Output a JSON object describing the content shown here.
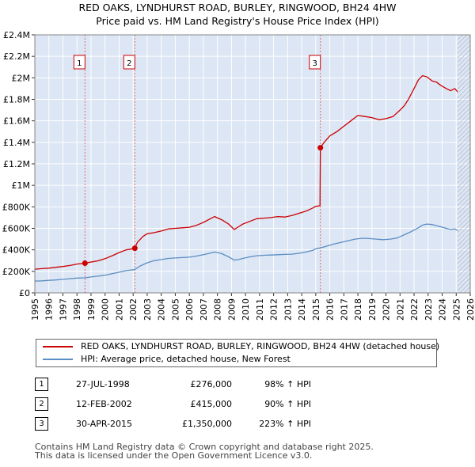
{
  "chart_data": {
    "type": "line",
    "title": "RED OAKS, LYNDHURST ROAD, BURLEY, RINGWOOD, BH24 4HW",
    "subtitle": "Price paid vs. HM Land Registry's House Price Index (HPI)",
    "xlabel": "",
    "ylabel": "",
    "xlim": [
      1995,
      2026
    ],
    "ylim": [
      0,
      2400000
    ],
    "grid": true,
    "x_ticks": [
      "1995",
      "1996",
      "1997",
      "1998",
      "1999",
      "2000",
      "2001",
      "2002",
      "2003",
      "2004",
      "2005",
      "2006",
      "2007",
      "2008",
      "2009",
      "2010",
      "2011",
      "2012",
      "2013",
      "2014",
      "2015",
      "2016",
      "2017",
      "2018",
      "2019",
      "2020",
      "2021",
      "2022",
      "2023",
      "2024",
      "2025",
      "2026"
    ],
    "y_ticks": [
      {
        "value": 0,
        "label": "£0"
      },
      {
        "value": 200000,
        "label": "£200K"
      },
      {
        "value": 400000,
        "label": "£400K"
      },
      {
        "value": 600000,
        "label": "£600K"
      },
      {
        "value": 800000,
        "label": "£800K"
      },
      {
        "value": 1000000,
        "label": "£1M"
      },
      {
        "value": 1200000,
        "label": "£1.2M"
      },
      {
        "value": 1400000,
        "label": "£1.4M"
      },
      {
        "value": 1600000,
        "label": "£1.6M"
      },
      {
        "value": 1800000,
        "label": "£1.8M"
      },
      {
        "value": 2000000,
        "label": "£2M"
      },
      {
        "value": 2200000,
        "label": "£2.2M"
      },
      {
        "value": 2400000,
        "label": "£2.4M"
      }
    ],
    "data_end_year": 2025.1,
    "series": [
      {
        "name": "RED OAKS, LYNDHURST ROAD, BURLEY, RINGWOOD, BH24 4HW (detached house)",
        "color": "#cc0000",
        "x": [
          1995.0,
          1995.5,
          1996.0,
          1996.5,
          1997.0,
          1997.5,
          1998.0,
          1998.57,
          1998.8,
          1999.5,
          2000.0,
          2000.5,
          2001.0,
          2001.5,
          2002.0,
          2002.12,
          2002.3,
          2002.7,
          2003.0,
          2003.5,
          2004.0,
          2004.5,
          2005.0,
          2005.5,
          2006.0,
          2006.5,
          2007.0,
          2007.5,
          2007.8,
          2008.3,
          2008.8,
          2009.2,
          2009.5,
          2009.8,
          2010.3,
          2010.8,
          2011.3,
          2011.8,
          2012.3,
          2012.8,
          2013.3,
          2013.8,
          2014.3,
          2014.8,
          2015.0,
          2015.3,
          2015.33,
          2015.6,
          2016.0,
          2016.5,
          2017.0,
          2017.5,
          2018.0,
          2018.5,
          2019.0,
          2019.5,
          2020.0,
          2020.5,
          2021.0,
          2021.3,
          2021.6,
          2022.0,
          2022.3,
          2022.6,
          2022.9,
          2023.3,
          2023.6,
          2023.9,
          2024.3,
          2024.6,
          2024.9,
          2025.1
        ],
        "y": [
          220000,
          225000,
          230000,
          238000,
          245000,
          255000,
          268000,
          276000,
          282000,
          298000,
          318000,
          345000,
          375000,
          400000,
          410000,
          415000,
          470000,
          525000,
          550000,
          560000,
          575000,
          595000,
          600000,
          605000,
          610000,
          628000,
          655000,
          690000,
          710000,
          680000,
          640000,
          590000,
          615000,
          640000,
          665000,
          690000,
          695000,
          700000,
          710000,
          705000,
          720000,
          740000,
          760000,
          790000,
          805000,
          810000,
          1350000,
          1400000,
          1460000,
          1500000,
          1550000,
          1600000,
          1650000,
          1640000,
          1630000,
          1610000,
          1620000,
          1640000,
          1700000,
          1740000,
          1800000,
          1900000,
          1980000,
          2020000,
          2010000,
          1970000,
          1960000,
          1930000,
          1900000,
          1880000,
          1900000,
          1870000
        ]
      },
      {
        "name": "HPI: Average price, detached house, New Forest",
        "color": "#5b8ec4",
        "x": [
          1995.0,
          1995.5,
          1996.0,
          1996.5,
          1997.0,
          1997.5,
          1998.0,
          1998.57,
          1999.0,
          1999.5,
          2000.0,
          2000.5,
          2001.0,
          2001.5,
          2002.0,
          2002.12,
          2002.5,
          2003.0,
          2003.5,
          2004.0,
          2004.5,
          2005.0,
          2005.5,
          2006.0,
          2006.5,
          2007.0,
          2007.5,
          2007.8,
          2008.3,
          2008.8,
          2009.2,
          2009.5,
          2009.8,
          2010.3,
          2010.8,
          2011.3,
          2011.8,
          2012.3,
          2012.8,
          2013.3,
          2013.8,
          2014.3,
          2014.8,
          2015.0,
          2015.33,
          2015.8,
          2016.3,
          2016.8,
          2017.3,
          2017.8,
          2018.3,
          2018.8,
          2019.3,
          2019.8,
          2020.3,
          2020.8,
          2021.3,
          2021.8,
          2022.3,
          2022.6,
          2022.9,
          2023.3,
          2023.6,
          2023.9,
          2024.3,
          2024.6,
          2024.9,
          2025.1
        ],
        "y": [
          110000,
          112000,
          116000,
          120000,
          126000,
          132000,
          138000,
          140000,
          148000,
          155000,
          165000,
          178000,
          192000,
          207000,
          215000,
          218000,
          250000,
          280000,
          300000,
          310000,
          320000,
          325000,
          328000,
          332000,
          342000,
          355000,
          370000,
          380000,
          365000,
          335000,
          305000,
          310000,
          320000,
          335000,
          345000,
          350000,
          352000,
          355000,
          358000,
          360000,
          368000,
          380000,
          395000,
          410000,
          418000,
          435000,
          455000,
          470000,
          485000,
          500000,
          508000,
          505000,
          500000,
          495000,
          500000,
          510000,
          540000,
          570000,
          605000,
          630000,
          640000,
          635000,
          625000,
          615000,
          600000,
          590000,
          595000,
          580000
        ]
      }
    ],
    "sales": [
      {
        "num": "1",
        "date": "27-JUL-1998",
        "x": 1998.57,
        "price": 276000,
        "price_label": "£276,000",
        "hpi": "98% ↑ HPI"
      },
      {
        "num": "2",
        "date": "12-FEB-2002",
        "x": 2002.12,
        "price": 415000,
        "price_label": "£415,000",
        "hpi": "90% ↑ HPI"
      },
      {
        "num": "3",
        "date": "30-APR-2015",
        "x": 2015.33,
        "price": 1350000,
        "price_label": "£1,350,000",
        "hpi": "223% ↑ HPI"
      }
    ]
  },
  "legend": {
    "red_label": "RED OAKS, LYNDHURST ROAD, BURLEY, RINGWOOD, BH24 4HW (detached house)",
    "blue_label": "HPI: Average price, detached house, New Forest"
  },
  "colors": {
    "red": "#cc0000",
    "blue": "#5b8ec4",
    "plot_bg": "#dce6f4",
    "grid": "#ffffff"
  },
  "footer": {
    "line1": "Contains HM Land Registry data © Crown copyright and database right 2025.",
    "line2": "This data is licensed under the Open Government Licence v3.0."
  }
}
